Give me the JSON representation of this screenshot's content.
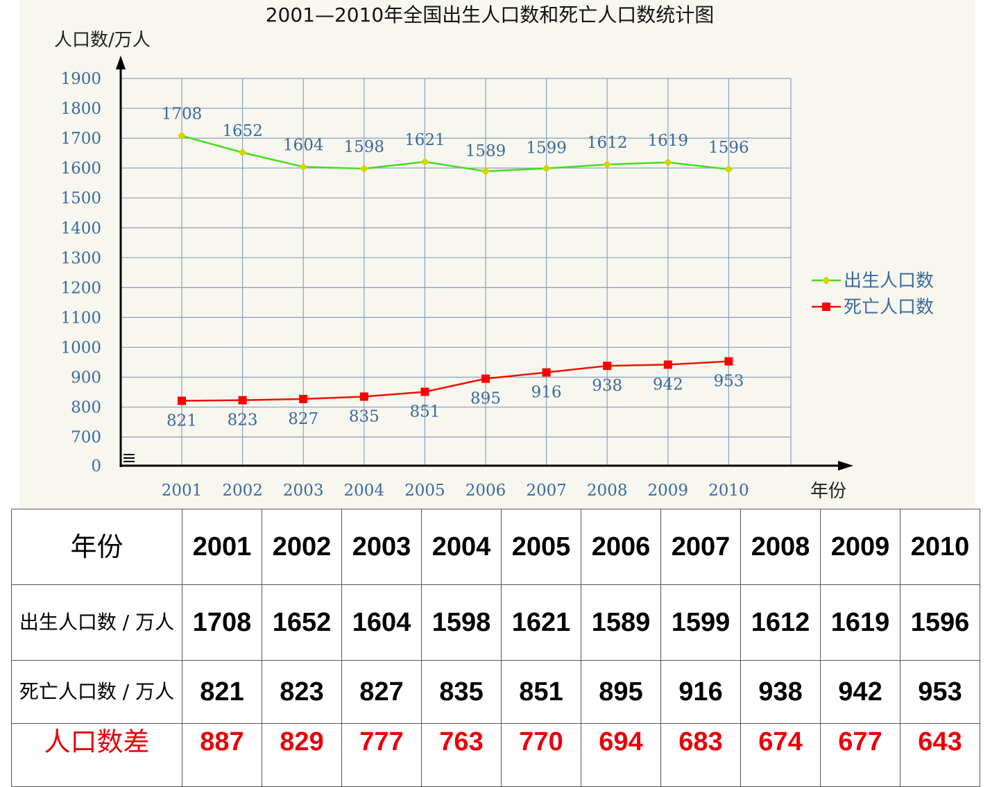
{
  "chart_data": {
    "type": "line",
    "title": "2001—2010年全国出生人口数和死亡人口数统计图",
    "ylabel": "人口数/万人",
    "xlabel": "年份",
    "x": [
      "2001",
      "2002",
      "2003",
      "2004",
      "2005",
      "2006",
      "2007",
      "2008",
      "2009",
      "2010"
    ],
    "y_ticks": [
      "0",
      "700",
      "800",
      "900",
      "1000",
      "1100",
      "1200",
      "1300",
      "1400",
      "1500",
      "1600",
      "1700",
      "1800",
      "1900"
    ],
    "ylim": [
      600,
      1900
    ],
    "axis_break": "between 0 and 700",
    "grid": true,
    "legend_position": "right",
    "series": [
      {
        "name": "出生人口数",
        "color": "#44dd22",
        "marker_color": "#d4d400",
        "marker": "diamond",
        "values": [
          1708,
          1652,
          1604,
          1598,
          1621,
          1589,
          1599,
          1612,
          1619,
          1596
        ]
      },
      {
        "name": "死亡人口数",
        "color": "#ee1100",
        "marker_color": "#ff0000",
        "marker": "square",
        "values": [
          821,
          823,
          827,
          835,
          851,
          895,
          916,
          938,
          942,
          953
        ]
      }
    ]
  },
  "table": {
    "headers": [
      "年份",
      "2001",
      "2002",
      "2003",
      "2004",
      "2005",
      "2006",
      "2007",
      "2008",
      "2009",
      "2010"
    ],
    "rows": [
      {
        "label": "出生人口数 / 万人",
        "values": [
          "1708",
          "1652",
          "1604",
          "1598",
          "1621",
          "1589",
          "1599",
          "1612",
          "1619",
          "1596"
        ]
      },
      {
        "label": "死亡人口数 / 万人",
        "values": [
          "821",
          "823",
          "827",
          "835",
          "851",
          "895",
          "916",
          "938",
          "942",
          "953"
        ]
      },
      {
        "label": "人口数差",
        "values": [
          "887",
          "829",
          "777",
          "763",
          "770",
          "694",
          "683",
          "674",
          "677",
          "643"
        ]
      }
    ],
    "diff_color": "#e8000b"
  }
}
